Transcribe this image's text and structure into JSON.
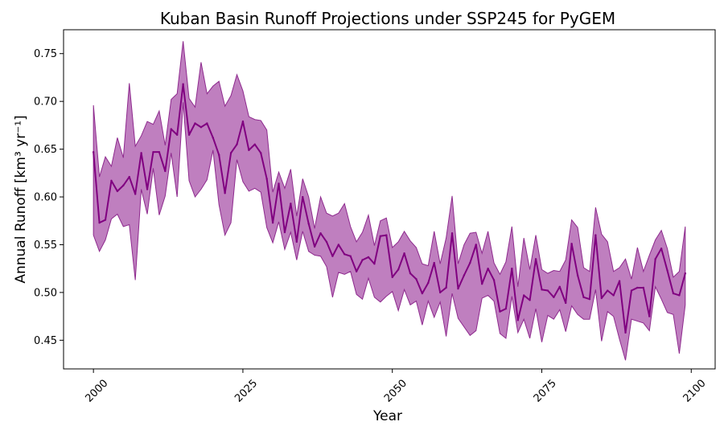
{
  "chart_data": {
    "type": "area",
    "title": "Kuban Basin Runoff Projections under SSP245 for PyGEM",
    "xlabel": "Year",
    "ylabel": "Annual Runoff [km³ yr⁻¹]",
    "xlim": [
      1995,
      2104
    ],
    "ylim": [
      0.42,
      0.775
    ],
    "xticks": [
      2000,
      2025,
      2050,
      2075,
      2100
    ],
    "yticks": [
      0.45,
      0.5,
      0.55,
      0.6,
      0.65,
      0.7,
      0.75
    ],
    "grid": false,
    "colors": {
      "line": "#800080",
      "band": "#bf7fbf",
      "band_edge": "#8e2a8e"
    },
    "x": [
      2000,
      2001,
      2002,
      2003,
      2004,
      2005,
      2006,
      2007,
      2008,
      2009,
      2010,
      2011,
      2012,
      2013,
      2014,
      2015,
      2016,
      2017,
      2018,
      2019,
      2020,
      2021,
      2022,
      2023,
      2024,
      2025,
      2026,
      2027,
      2028,
      2029,
      2030,
      2031,
      2032,
      2033,
      2034,
      2035,
      2036,
      2037,
      2038,
      2039,
      2040,
      2041,
      2042,
      2043,
      2044,
      2045,
      2046,
      2047,
      2048,
      2049,
      2050,
      2051,
      2052,
      2053,
      2054,
      2055,
      2056,
      2057,
      2058,
      2059,
      2060,
      2061,
      2062,
      2063,
      2064,
      2065,
      2066,
      2067,
      2068,
      2069,
      2070,
      2071,
      2072,
      2073,
      2074,
      2075,
      2076,
      2077,
      2078,
      2079,
      2080,
      2081,
      2082,
      2083,
      2084,
      2085,
      2086,
      2087,
      2088,
      2089,
      2090,
      2091,
      2092,
      2093,
      2094,
      2095,
      2096,
      2097,
      2098,
      2099
    ],
    "series": [
      {
        "role": "mean",
        "values": [
          0.647,
          0.573,
          0.576,
          0.617,
          0.606,
          0.612,
          0.621,
          0.603,
          0.646,
          0.608,
          0.647,
          0.647,
          0.627,
          0.671,
          0.665,
          0.718,
          0.665,
          0.677,
          0.673,
          0.677,
          0.662,
          0.644,
          0.604,
          0.646,
          0.655,
          0.679,
          0.649,
          0.655,
          0.646,
          0.619,
          0.573,
          0.614,
          0.563,
          0.593,
          0.553,
          0.6,
          0.572,
          0.548,
          0.562,
          0.553,
          0.538,
          0.55,
          0.54,
          0.538,
          0.522,
          0.534,
          0.537,
          0.53,
          0.559,
          0.56,
          0.516,
          0.524,
          0.541,
          0.52,
          0.514,
          0.499,
          0.51,
          0.531,
          0.5,
          0.505,
          0.562,
          0.504,
          0.518,
          0.531,
          0.55,
          0.509,
          0.525,
          0.513,
          0.48,
          0.483,
          0.525,
          0.471,
          0.497,
          0.492,
          0.535,
          0.503,
          0.502,
          0.495,
          0.506,
          0.489,
          0.551,
          0.518,
          0.495,
          0.493,
          0.56,
          0.494,
          0.502,
          0.497,
          0.512,
          0.458,
          0.502,
          0.505,
          0.505,
          0.475,
          0.535,
          0.546,
          0.523,
          0.499,
          0.497,
          0.52
        ]
      },
      {
        "role": "upper",
        "values": [
          0.696,
          0.621,
          0.642,
          0.632,
          0.662,
          0.641,
          0.719,
          0.653,
          0.664,
          0.679,
          0.676,
          0.69,
          0.654,
          0.702,
          0.708,
          0.763,
          0.703,
          0.694,
          0.741,
          0.708,
          0.716,
          0.721,
          0.695,
          0.706,
          0.728,
          0.711,
          0.684,
          0.681,
          0.68,
          0.67,
          0.605,
          0.626,
          0.609,
          0.629,
          0.58,
          0.619,
          0.6,
          0.567,
          0.6,
          0.583,
          0.58,
          0.583,
          0.593,
          0.569,
          0.553,
          0.563,
          0.581,
          0.549,
          0.575,
          0.578,
          0.547,
          0.553,
          0.564,
          0.554,
          0.547,
          0.53,
          0.528,
          0.564,
          0.53,
          0.557,
          0.601,
          0.53,
          0.55,
          0.562,
          0.563,
          0.541,
          0.564,
          0.531,
          0.519,
          0.532,
          0.569,
          0.506,
          0.557,
          0.524,
          0.56,
          0.524,
          0.52,
          0.523,
          0.522,
          0.534,
          0.576,
          0.568,
          0.526,
          0.522,
          0.589,
          0.561,
          0.553,
          0.522,
          0.526,
          0.535,
          0.514,
          0.547,
          0.522,
          0.539,
          0.555,
          0.565,
          0.546,
          0.516,
          0.522,
          0.569
        ]
      },
      {
        "role": "lower",
        "values": [
          0.56,
          0.543,
          0.555,
          0.577,
          0.582,
          0.569,
          0.571,
          0.513,
          0.608,
          0.582,
          0.63,
          0.581,
          0.601,
          0.646,
          0.6,
          0.699,
          0.617,
          0.6,
          0.608,
          0.618,
          0.649,
          0.592,
          0.56,
          0.573,
          0.639,
          0.616,
          0.606,
          0.609,
          0.605,
          0.568,
          0.552,
          0.574,
          0.545,
          0.563,
          0.534,
          0.564,
          0.543,
          0.539,
          0.538,
          0.527,
          0.495,
          0.521,
          0.519,
          0.522,
          0.498,
          0.493,
          0.515,
          0.495,
          0.49,
          0.496,
          0.501,
          0.481,
          0.503,
          0.487,
          0.491,
          0.466,
          0.491,
          0.474,
          0.49,
          0.454,
          0.499,
          0.473,
          0.464,
          0.455,
          0.46,
          0.494,
          0.497,
          0.491,
          0.457,
          0.452,
          0.496,
          0.458,
          0.472,
          0.452,
          0.483,
          0.448,
          0.476,
          0.472,
          0.482,
          0.459,
          0.486,
          0.477,
          0.472,
          0.472,
          0.503,
          0.449,
          0.48,
          0.475,
          0.451,
          0.429,
          0.472,
          0.47,
          0.468,
          0.46,
          0.506,
          0.493,
          0.479,
          0.477,
          0.436,
          0.487
        ]
      }
    ]
  }
}
